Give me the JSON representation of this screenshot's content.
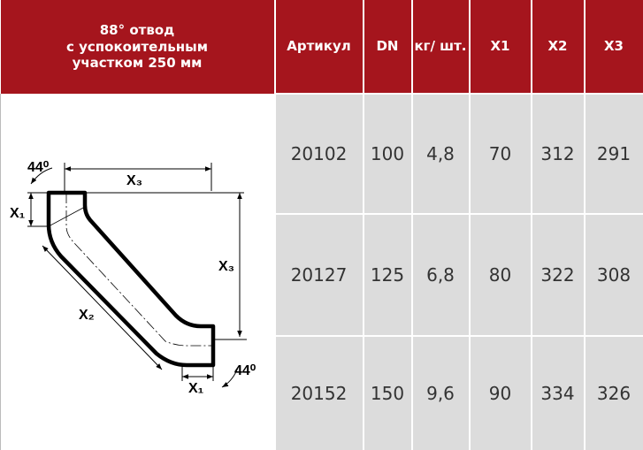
{
  "table": {
    "header": {
      "title_lines": [
        "88° отвод",
        "с успокоительным",
        "участком 250 мм"
      ],
      "columns": [
        "Артикул",
        "DN",
        "кг/ шт.",
        "X1",
        "X2",
        "X3"
      ]
    },
    "rows": [
      [
        "20102",
        "100",
        "4,8",
        "70",
        "312",
        "291"
      ],
      [
        "20127",
        "125",
        "6,8",
        "80",
        "322",
        "308"
      ],
      [
        "20152",
        "150",
        "9,6",
        "90",
        "334",
        "326"
      ]
    ]
  },
  "diagram": {
    "labels": [
      "44⁰",
      "X₃",
      "X₁",
      "X₃",
      "X₂",
      "X₁",
      "44⁰"
    ]
  }
}
